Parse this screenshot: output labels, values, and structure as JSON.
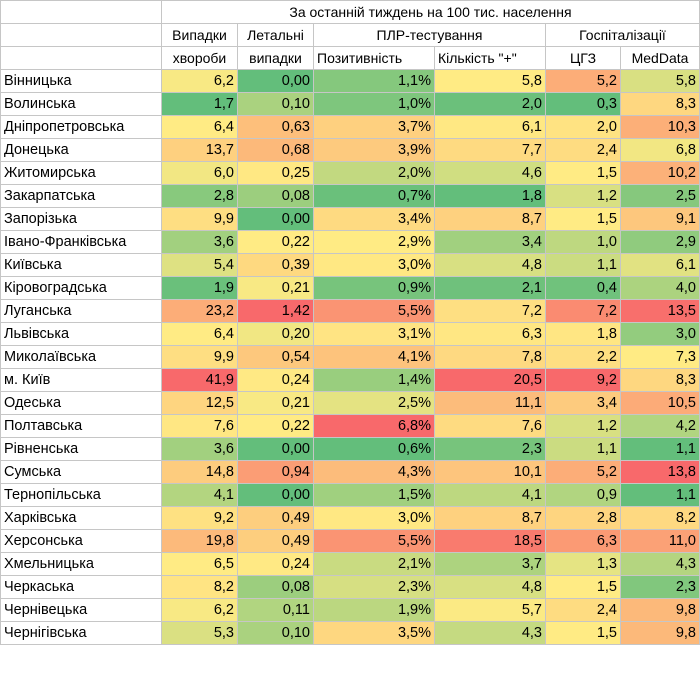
{
  "header": {
    "title": "За останній тиждень на 100 тис. населення",
    "groups": [
      "Випадки",
      "Летальні",
      "ПЛР-тестування",
      "Госпіталізації"
    ],
    "subs": [
      "хвороби",
      "випадки",
      "Позитивність",
      "Кількість \"+\"",
      "ЦГЗ",
      "MedData"
    ]
  },
  "chart_data": {
    "type": "table",
    "columns": [
      "Випадки хвороби",
      "Летальні випадки",
      "Позитивність",
      "Кількість \"+\"",
      "ЦГЗ",
      "MedData"
    ],
    "rows": [
      {
        "region": "Вінницька",
        "cells": [
          "6,2",
          "0,00",
          "1,1%",
          "5,8",
          "5,2",
          "5,8"
        ]
      },
      {
        "region": "Волинська",
        "cells": [
          "1,7",
          "0,10",
          "1,0%",
          "2,0",
          "0,3",
          "8,3"
        ]
      },
      {
        "region": "Дніпропетровська",
        "cells": [
          "6,4",
          "0,63",
          "3,7%",
          "6,1",
          "2,0",
          "10,3"
        ]
      },
      {
        "region": "Донецька",
        "cells": [
          "13,7",
          "0,68",
          "3,9%",
          "7,7",
          "2,4",
          "6,8"
        ]
      },
      {
        "region": "Житомирська",
        "cells": [
          "6,0",
          "0,25",
          "2,0%",
          "4,6",
          "1,5",
          "10,2"
        ]
      },
      {
        "region": "Закарпатська",
        "cells": [
          "2,8",
          "0,08",
          "0,7%",
          "1,8",
          "1,2",
          "2,5"
        ]
      },
      {
        "region": "Запорізька",
        "cells": [
          "9,9",
          "0,00",
          "3,4%",
          "8,7",
          "1,5",
          "9,1"
        ]
      },
      {
        "region": "Івано-Франківська",
        "cells": [
          "3,6",
          "0,22",
          "2,9%",
          "3,4",
          "1,0",
          "2,9"
        ]
      },
      {
        "region": "Київська",
        "cells": [
          "5,4",
          "0,39",
          "3,0%",
          "4,8",
          "1,1",
          "6,1"
        ]
      },
      {
        "region": "Кіровоградська",
        "cells": [
          "1,9",
          "0,21",
          "0,9%",
          "2,1",
          "0,4",
          "4,0"
        ]
      },
      {
        "region": "Луганська",
        "cells": [
          "23,2",
          "1,42",
          "5,5%",
          "7,2",
          "7,2",
          "13,5"
        ]
      },
      {
        "region": "Львівська",
        "cells": [
          "6,4",
          "0,20",
          "3,1%",
          "6,3",
          "1,8",
          "3,0"
        ]
      },
      {
        "region": "Миколаївська",
        "cells": [
          "9,9",
          "0,54",
          "4,1%",
          "7,8",
          "2,2",
          "7,3"
        ]
      },
      {
        "region": "м. Київ",
        "cells": [
          "41,9",
          "0,24",
          "1,4%",
          "20,5",
          "9,2",
          "8,3"
        ]
      },
      {
        "region": "Одеська",
        "cells": [
          "12,5",
          "0,21",
          "2,5%",
          "11,1",
          "3,4",
          "10,5"
        ]
      },
      {
        "region": "Полтавська",
        "cells": [
          "7,6",
          "0,22",
          "6,8%",
          "7,6",
          "1,2",
          "4,2"
        ]
      },
      {
        "region": "Рівненська",
        "cells": [
          "3,6",
          "0,00",
          "0,6%",
          "2,3",
          "1,1",
          "1,1"
        ]
      },
      {
        "region": "Сумська",
        "cells": [
          "14,8",
          "0,94",
          "4,3%",
          "10,1",
          "5,2",
          "13,8"
        ]
      },
      {
        "region": "Тернопільська",
        "cells": [
          "4,1",
          "0,00",
          "1,5%",
          "4,1",
          "0,9",
          "1,1"
        ]
      },
      {
        "region": "Харківська",
        "cells": [
          "9,2",
          "0,49",
          "3,0%",
          "8,7",
          "2,8",
          "8,2"
        ]
      },
      {
        "region": "Херсонська",
        "cells": [
          "19,8",
          "0,49",
          "5,5%",
          "18,5",
          "6,3",
          "11,0"
        ]
      },
      {
        "region": "Хмельницька",
        "cells": [
          "6,5",
          "0,24",
          "2,1%",
          "3,7",
          "1,3",
          "4,3"
        ]
      },
      {
        "region": "Черкаська",
        "cells": [
          "8,2",
          "0,08",
          "2,3%",
          "4,8",
          "1,5",
          "2,3"
        ]
      },
      {
        "region": "Чернівецька",
        "cells": [
          "6,2",
          "0,11",
          "1,9%",
          "5,7",
          "2,4",
          "9,8"
        ]
      },
      {
        "region": "Чернігівська",
        "cells": [
          "5,3",
          "0,10",
          "3,5%",
          "4,3",
          "1,5",
          "9,8"
        ]
      }
    ]
  },
  "colors": {
    "low": "#63be7b",
    "mid": "#ffeb84",
    "high": "#f8696b",
    "grid": "#c6c6c6"
  }
}
